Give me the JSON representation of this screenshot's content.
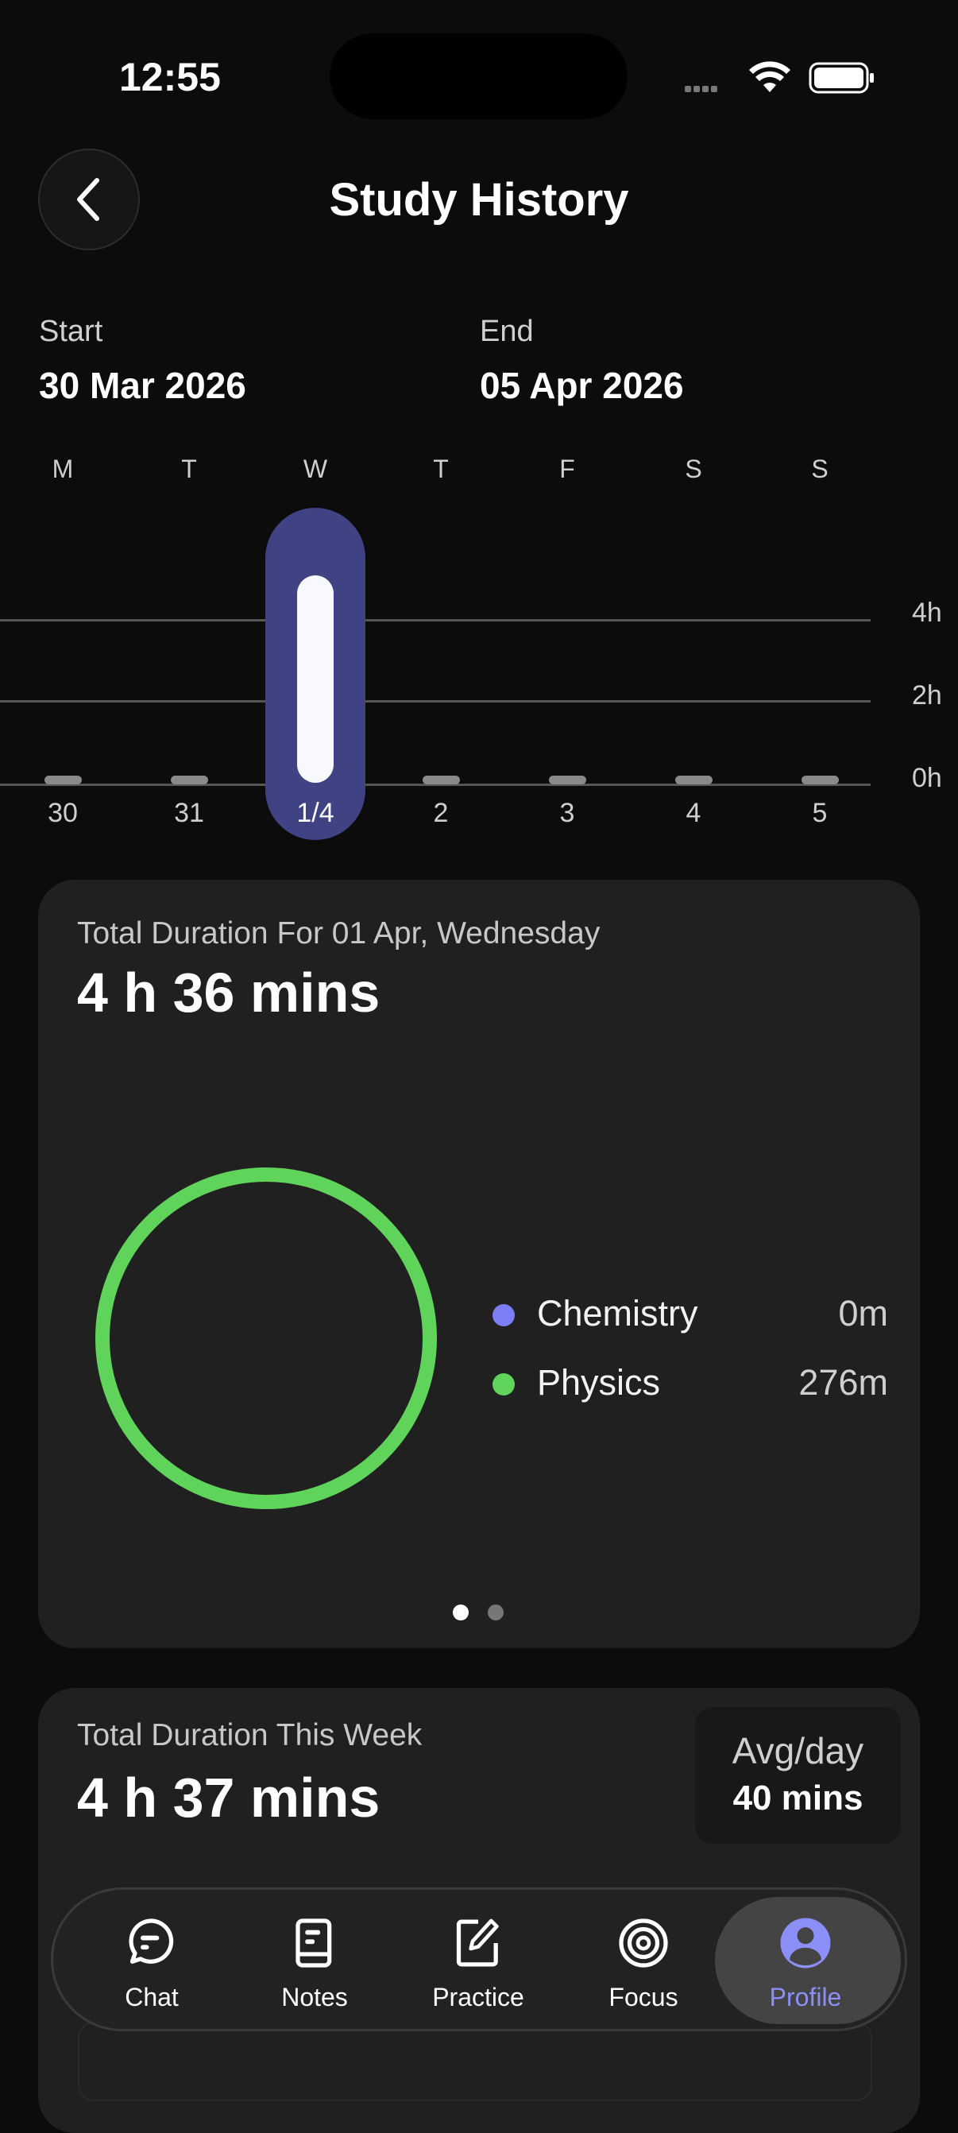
{
  "status_bar": {
    "time": "12:55"
  },
  "header": {
    "title": "Study History",
    "back_icon": "chevron-left-icon"
  },
  "range": {
    "start_label": "Start",
    "start_value": "30 Mar 2026",
    "end_label": "End",
    "end_value": "05 Apr 2026"
  },
  "chart_data": {
    "type": "bar",
    "weekdays": [
      "M",
      "T",
      "W",
      "T",
      "F",
      "S",
      "S"
    ],
    "categories": [
      "30",
      "31",
      "1/4",
      "2",
      "3",
      "4",
      "5"
    ],
    "values_hours": [
      0,
      0,
      4.6,
      0,
      0,
      0,
      0
    ],
    "selected_index": 2,
    "y_ticks": [
      "4h",
      "2h",
      "0h"
    ],
    "ylim": [
      0,
      4.6
    ],
    "colors": {
      "selected_bg": "#3f4283",
      "bar": "#f8f9fc",
      "empty": "#8a8a8a",
      "grid": "#555555"
    }
  },
  "day_card": {
    "title": "Total Duration For 01 Apr, Wednesday",
    "total": "4 h 36 mins",
    "legend": [
      {
        "name": "Chemistry",
        "value": "0m",
        "minutes": 0,
        "color": "#7b7ef5"
      },
      {
        "name": "Physics",
        "value": "276m",
        "minutes": 276,
        "color": "#5fd35a"
      }
    ],
    "page_count": 2,
    "page_active": 0
  },
  "week_card": {
    "title": "Total Duration This Week",
    "total": "4 h 37 mins",
    "avg_label": "Avg/day",
    "avg_value": "40 mins"
  },
  "tabbar": {
    "active_color": "#8c8ff8",
    "items": [
      {
        "label": "Chat",
        "icon": "chat-bubble-icon"
      },
      {
        "label": "Notes",
        "icon": "notebook-icon"
      },
      {
        "label": "Practice",
        "icon": "edit-pencil-icon"
      },
      {
        "label": "Focus",
        "icon": "target-icon"
      },
      {
        "label": "Profile",
        "icon": "profile-icon",
        "active": true
      }
    ]
  }
}
